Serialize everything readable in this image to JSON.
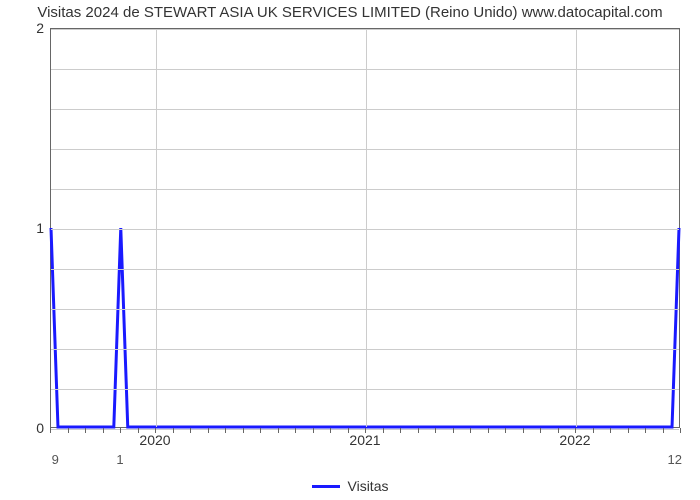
{
  "chart": {
    "type": "line",
    "title": "Visitas 2024 de STEWART ASIA UK SERVICES LIMITED (Reino Unido) www.datocapital.com",
    "title_fontsize": 15,
    "title_color": "#333333",
    "background_color": "#ffffff",
    "plot_border_color": "#666666",
    "grid_color": "#cccccc",
    "yaxis": {
      "lim": [
        0,
        2
      ],
      "ticks": [
        0,
        1,
        2
      ],
      "minor_count_between": 4,
      "label_fontsize": 14,
      "label_color": "#333333"
    },
    "xaxis": {
      "domain": [
        0,
        36
      ],
      "major_ticks": [
        {
          "pos": 6,
          "label": "2020"
        },
        {
          "pos": 18,
          "label": "2021"
        },
        {
          "pos": 30,
          "label": "2022"
        }
      ],
      "minor_tick_step": 1,
      "label_fontsize": 14,
      "label_color": "#333333",
      "secondary_ticks": [
        {
          "pos": 0.3,
          "label": "9"
        },
        {
          "pos": 4,
          "label": "1"
        },
        {
          "pos": 35.7,
          "label": "12"
        }
      ],
      "secondary_fontsize": 13,
      "secondary_color": "#555555"
    },
    "series": [
      {
        "name": "Visitas",
        "color": "#1a1aff",
        "line_width": 3,
        "x": [
          0,
          0.4,
          1.2,
          3.6,
          4.0,
          4.4,
          5.0,
          34.2,
          35.0,
          35.6,
          36.0
        ],
        "y": [
          1,
          0,
          0,
          0,
          1,
          0,
          0,
          0,
          0,
          0,
          1
        ]
      }
    ],
    "legend": {
      "position": "bottom-center",
      "items": [
        {
          "label": "Visitas",
          "color": "#1a1aff",
          "line_width": 3
        }
      ],
      "fontsize": 14,
      "color": "#333333"
    }
  }
}
